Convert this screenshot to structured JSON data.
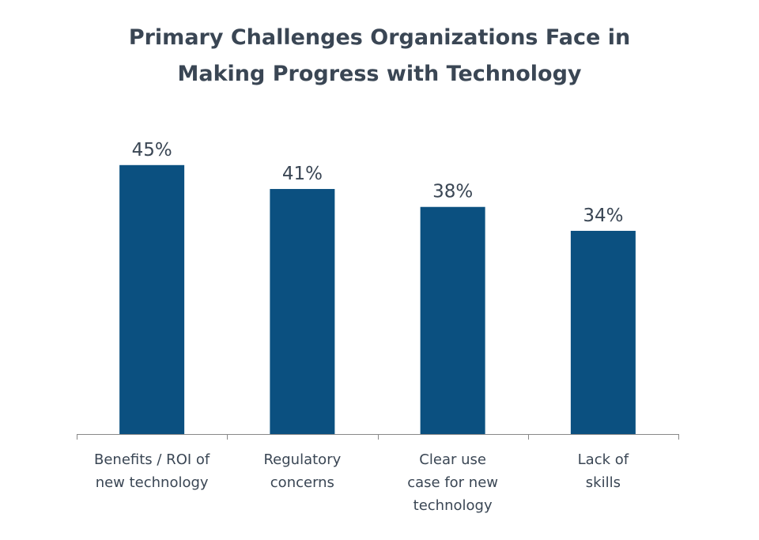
{
  "chart_data": {
    "type": "bar",
    "title": "Primary Challenges Organizations Face in Making Progress with Technology",
    "title_lines": [
      "Primary Challenges Organizations Face in",
      "Making Progress with Technology"
    ],
    "categories": [
      "Benefits / ROI of new technology",
      "Regulatory concerns",
      "Clear use case for new technology",
      "Lack of skills"
    ],
    "category_lines": [
      [
        "Benefits / ROI of",
        "new technology"
      ],
      [
        "Regulatory",
        "concerns"
      ],
      [
        "Clear use",
        "case for new",
        "technology"
      ],
      [
        "Lack of",
        "skills"
      ]
    ],
    "values": [
      45,
      41,
      38,
      34
    ],
    "value_labels": [
      "45%",
      "41%",
      "38%",
      "34%"
    ],
    "ylim": [
      0,
      50
    ],
    "grid": false,
    "legend": "none",
    "bar_color": "#0b5080",
    "text_color": "#3a4654",
    "axis_color": "#888888"
  }
}
